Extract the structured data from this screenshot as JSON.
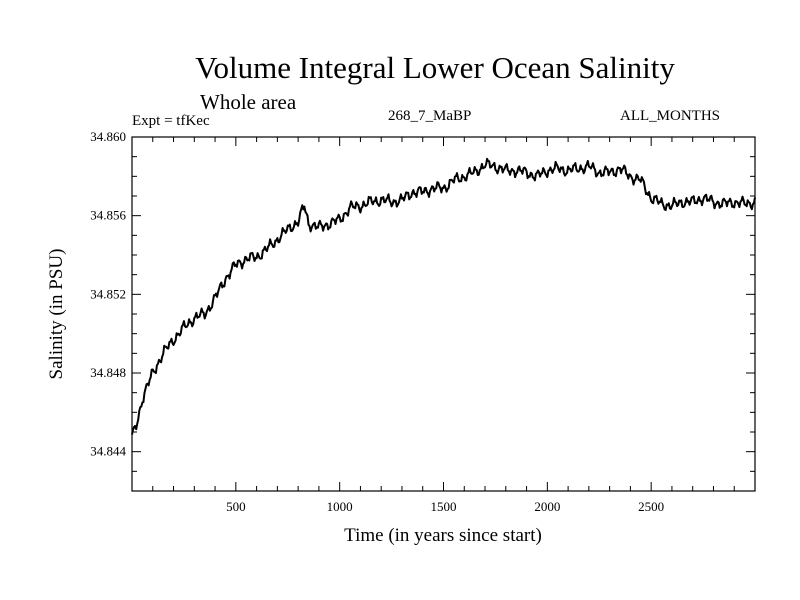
{
  "header": {
    "title": "Volume Integral Lower Ocean Salinity",
    "subtitle": "Whole area",
    "experiment": "Expt = tfKec",
    "period": "268_7_MaBP",
    "months": "ALL_MONTHS"
  },
  "chart_data": {
    "type": "line",
    "title": "Volume Integral Lower Ocean Salinity",
    "subtitle": "Whole area",
    "xlabel": "Time (in years since start)",
    "ylabel": "Salinity (in PSU)",
    "xlim": [
      0,
      3000
    ],
    "ylim": [
      34.842,
      34.86
    ],
    "x_ticks": [
      500,
      1000,
      1500,
      2000,
      2500
    ],
    "x_tick_labels": [
      "500",
      "1000",
      "1500",
      "2000",
      "2500"
    ],
    "y_ticks": [
      34.844,
      34.848,
      34.852,
      34.856,
      34.86
    ],
    "y_tick_labels": [
      "34.844",
      "34.848",
      "34.852",
      "34.856",
      "34.860"
    ],
    "grid": false,
    "legend": "none",
    "color": "#000000",
    "series": [
      {
        "x": [
          0,
          25,
          50,
          100,
          150,
          200,
          250,
          300,
          350,
          400,
          450,
          500,
          550,
          600,
          650,
          700,
          750,
          800,
          830,
          850,
          900,
          950,
          1000,
          1050,
          1100,
          1150,
          1200,
          1250,
          1300,
          1350,
          1400,
          1450,
          1500,
          1550,
          1600,
          1650,
          1700,
          1750,
          1800,
          1850,
          1900,
          1950,
          2000,
          2050,
          2100,
          2150,
          2200,
          2250,
          2300,
          2350,
          2400,
          2450,
          2500,
          2550,
          2600,
          2650,
          2700,
          2750,
          2800,
          2850,
          2900,
          2950,
          3000
        ],
        "y": [
          34.8447,
          34.8455,
          34.8467,
          34.848,
          34.849,
          34.8497,
          34.8503,
          34.8508,
          34.851,
          34.8518,
          34.8528,
          34.8535,
          34.8538,
          34.8539,
          34.8543,
          34.8548,
          34.8553,
          34.8557,
          34.8565,
          34.8556,
          34.8554,
          34.8556,
          34.8558,
          34.8564,
          34.8565,
          34.8567,
          34.8568,
          34.8567,
          34.8568,
          34.8572,
          34.8572,
          34.8574,
          34.8574,
          34.8578,
          34.858,
          34.8582,
          34.8586,
          34.8585,
          34.8583,
          34.8583,
          34.8582,
          34.858,
          34.8583,
          34.8584,
          34.8583,
          34.8584,
          34.8585,
          34.8582,
          34.8582,
          34.8584,
          34.858,
          34.8578,
          34.8569,
          34.8566,
          34.8565,
          34.8567,
          34.8567,
          34.8569,
          34.8567,
          34.8566,
          34.8567,
          34.8566,
          34.8567
        ]
      }
    ]
  }
}
